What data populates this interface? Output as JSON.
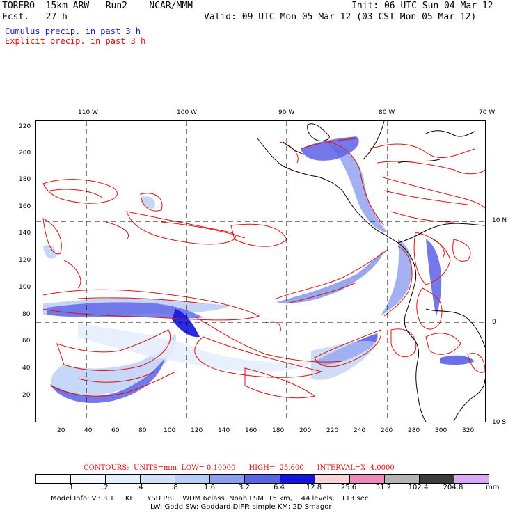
{
  "header": {
    "title": "TORERO  15km ARW   Run2    NCAR/MMM",
    "init": "Init: 06 UTC Sun 04 Mar 12",
    "fcst": "Fcst.   27 h",
    "valid": "Valid: 09 UTC Mon 05 Mar 12 (03 CST Mon 05 Mar 12)",
    "cumulus": "Cumulus precip. in past 3 h",
    "explicit": "Explicit precip. in past 3 h"
  },
  "axes": {
    "lon_labels": [
      "110 W",
      "100 W",
      "90 W",
      "80 W",
      "70 W"
    ],
    "lat_labels": [
      "10 N",
      "0",
      "10 S"
    ],
    "y_ticks": [
      "220",
      "200",
      "180",
      "160",
      "140",
      "120",
      "100",
      "80",
      "60",
      "40",
      "20"
    ],
    "x_ticks": [
      "20",
      "40",
      "60",
      "80",
      "100",
      "120",
      "140",
      "160",
      "180",
      "200",
      "220",
      "240",
      "260",
      "280",
      "300",
      "320"
    ]
  },
  "contour_info": "CONTOURS:  UNITS=mm  LOW= 0.10000      HIGH=  25.600      INTERVAL=X  4.0000",
  "colorbar": {
    "labels": [
      ".1",
      ".2",
      ".4",
      ".8",
      "1.6",
      "3.2",
      "6.4",
      "12.8",
      "25.6",
      "51.2",
      "102.4",
      "204.8"
    ],
    "unit": "mm",
    "colors": [
      "#ffffff",
      "#f4f8ff",
      "#e4eefc",
      "#d0e0f8",
      "#b8cdf5",
      "#8c9ef0",
      "#5a62e6",
      "#1414e0",
      "#f8d4d8",
      "#ee88b8",
      "#b4b4b4",
      "#3c3c3c",
      "#d8a8f4"
    ]
  },
  "footer": {
    "line1": "Model Info: V3.3.1     KF      YSU PBL   WDM 6class  Noah LSM  15 km,    44 levels,   113 sec",
    "line2": "LW: Godd SW: Goddard DIFF: simple KM: 2D Smagor"
  }
}
